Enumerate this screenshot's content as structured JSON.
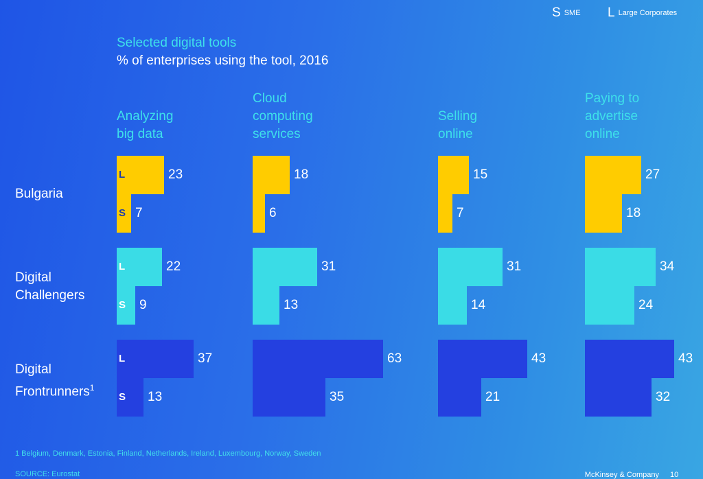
{
  "legend": {
    "sme_letter": "S",
    "sme_label": "SME",
    "large_letter": "L",
    "large_label": "Large Corporates"
  },
  "chart_data": {
    "type": "bar",
    "subtitle": "Selected digital tools",
    "title": "% of enterprises using the tool, 2016",
    "categories": [
      "Analyzing\nbig data",
      "Cloud\ncomputing\nservices",
      "Selling\nonline",
      "Paying to\nadvertise\nonline"
    ],
    "groups": [
      {
        "name": "Bulgaria",
        "color": "#ffcc00",
        "letter_color": "#1e3ca8",
        "series": [
          {
            "letter": "L",
            "name": "Large Corporates",
            "values": [
              23,
              18,
              15,
              27
            ]
          },
          {
            "letter": "S",
            "name": "SME",
            "values": [
              7,
              6,
              7,
              18
            ]
          }
        ]
      },
      {
        "name": "Digital\nChallengers",
        "color": "#3adce6",
        "letter_color": "#ffffff",
        "series": [
          {
            "letter": "L",
            "name": "Large Corporates",
            "values": [
              22,
              31,
              31,
              34
            ]
          },
          {
            "letter": "S",
            "name": "SME",
            "values": [
              9,
              13,
              14,
              24
            ]
          }
        ]
      },
      {
        "name": "Digital\nFrontrunners",
        "sup": "1",
        "color": "#2440e0",
        "letter_color": "#ffffff",
        "series": [
          {
            "letter": "L",
            "name": "Large Corporates",
            "values": [
              37,
              63,
              43,
              43
            ]
          },
          {
            "letter": "S",
            "name": "SME",
            "values": [
              13,
              35,
              21,
              32
            ]
          }
        ]
      }
    ]
  },
  "footnote": "1 Belgium, Denmark, Estonia, Finland, Netherlands, Ireland, Luxembourg, Norway, Sweden",
  "source": "SOURCE: Eurostat",
  "company": "McKinsey & Company",
  "page_number": "10"
}
